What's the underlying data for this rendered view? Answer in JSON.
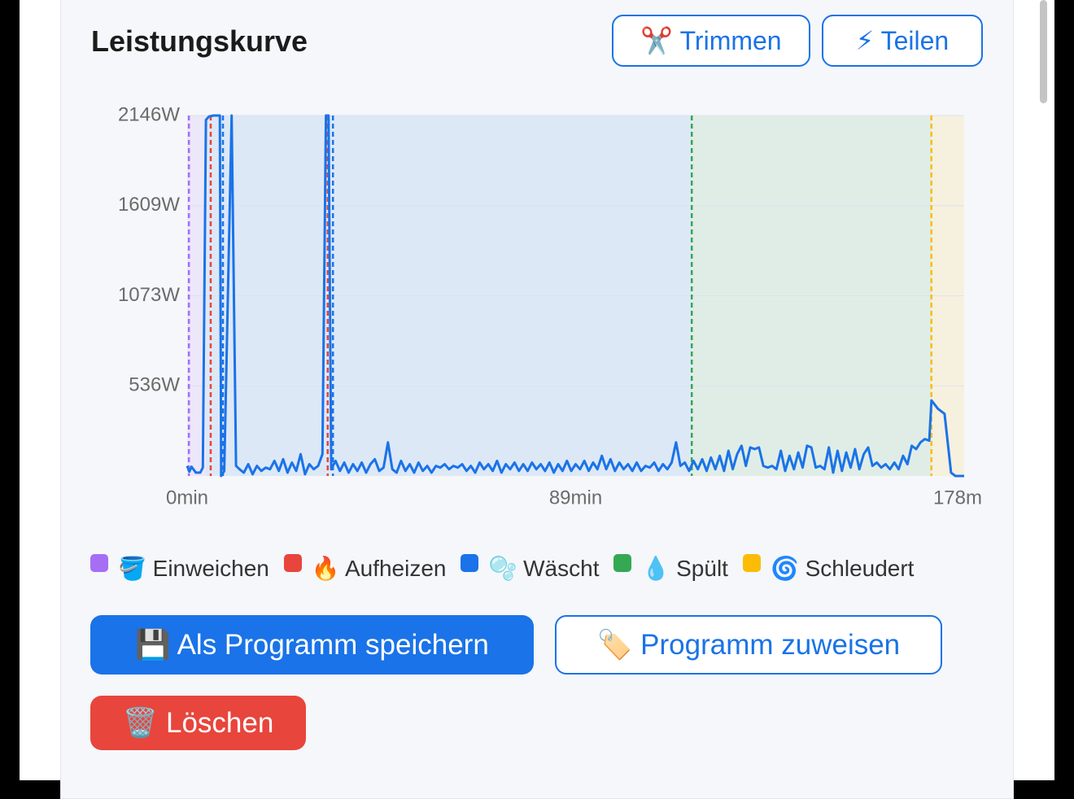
{
  "header": {
    "title": "Leistungskurve",
    "buttons": [
      "✂️ Trimmen",
      "⚡ Teilen"
    ]
  },
  "chart_data": {
    "type": "line",
    "xlim": [
      0,
      178
    ],
    "xticks": [
      {
        "value": 0,
        "label": "0min"
      },
      {
        "value": 89,
        "label": "89min"
      },
      {
        "value": 178,
        "label": "178m"
      }
    ],
    "ylim": [
      0,
      2146
    ],
    "yticks": [
      {
        "value": 536,
        "label": "536W"
      },
      {
        "value": 1073,
        "label": "1073W"
      },
      {
        "value": 1609,
        "label": "1609W"
      },
      {
        "value": 2146,
        "label": "2146W"
      }
    ],
    "grid": true,
    "x": [
      0,
      0.5,
      1,
      2,
      3,
      3.6,
      4.3,
      5,
      6,
      7.5,
      7.8,
      8.5,
      10.2,
      11.2,
      12,
      13,
      14,
      15,
      16,
      17,
      18,
      19,
      20,
      21,
      22,
      23,
      24,
      25,
      26,
      27,
      28,
      29,
      30,
      31,
      31.8,
      32.4,
      33,
      34,
      35,
      36,
      37,
      38,
      39,
      40,
      41,
      42,
      43,
      44,
      45,
      46,
      47,
      48,
      49,
      50,
      51,
      52,
      53,
      54,
      55,
      56,
      57,
      58,
      59,
      60,
      61,
      62,
      63,
      64,
      65,
      66,
      67,
      68,
      69,
      70,
      71,
      72,
      73,
      74,
      75,
      76,
      77,
      78,
      79,
      80,
      81,
      82,
      83,
      84,
      85,
      86,
      87,
      88,
      89,
      90,
      91,
      92,
      93,
      94,
      95,
      96,
      97,
      98,
      99,
      100,
      101,
      102,
      103,
      104,
      105,
      106,
      107,
      108,
      109,
      110,
      111,
      112,
      113,
      114,
      115,
      116,
      117,
      118,
      119,
      120,
      121,
      122,
      123,
      124,
      125,
      126,
      127,
      128,
      129,
      130,
      131,
      132,
      133,
      134,
      135,
      136,
      137,
      138,
      139,
      140,
      141,
      142,
      143,
      144,
      145,
      146,
      147,
      148,
      149,
      150,
      151,
      152,
      153,
      154,
      155,
      156,
      157,
      158,
      159,
      160,
      161,
      162,
      163,
      164,
      165,
      166,
      167,
      168,
      169,
      170,
      170.5,
      172,
      173.5,
      175,
      176,
      178
    ],
    "series": [
      {
        "color": "#1a73e8",
        "values": [
          60,
          25,
          55,
          20,
          20,
          50,
          2120,
          2140,
          2146,
          2146,
          0,
          30,
          2146,
          60,
          40,
          20,
          70,
          10,
          60,
          30,
          50,
          40,
          90,
          30,
          100,
          20,
          80,
          30,
          130,
          10,
          70,
          40,
          60,
          130,
          2146,
          2146,
          40,
          90,
          30,
          80,
          20,
          70,
          30,
          80,
          20,
          70,
          100,
          30,
          50,
          200,
          40,
          20,
          90,
          30,
          70,
          20,
          80,
          30,
          60,
          20,
          60,
          50,
          70,
          40,
          60,
          50,
          70,
          30,
          60,
          20,
          80,
          40,
          70,
          30,
          90,
          20,
          70,
          40,
          80,
          30,
          70,
          30,
          80,
          40,
          70,
          30,
          80,
          20,
          70,
          30,
          90,
          30,
          70,
          40,
          90,
          30,
          80,
          40,
          120,
          40,
          100,
          30,
          80,
          40,
          70,
          30,
          80,
          30,
          60,
          50,
          80,
          30,
          70,
          40,
          80,
          200,
          60,
          80,
          30,
          90,
          40,
          100,
          30,
          110,
          40,
          120,
          30,
          150,
          40,
          130,
          180,
          60,
          170,
          160,
          170,
          60,
          50,
          60,
          40,
          150,
          30,
          120,
          40,
          140,
          50,
          180,
          170,
          50,
          60,
          40,
          170,
          20,
          150,
          30,
          140,
          50,
          160,
          40,
          130,
          170,
          60,
          80,
          50,
          70,
          40,
          80,
          40,
          120,
          70,
          180,
          160,
          200,
          220,
          210,
          450,
          400,
          370,
          20,
          0,
          0
        ]
      }
    ],
    "regions": [
      {
        "start": 0,
        "end": 4.3,
        "color": "#a56ef5"
      },
      {
        "start": 4.3,
        "end": 115.6,
        "color": "#1a73e8"
      },
      {
        "start": 115.6,
        "end": 170.5,
        "color": "#34a853"
      },
      {
        "start": 170.5,
        "end": 178,
        "color": "#fbbc05"
      }
    ],
    "markers": [
      {
        "x": 0.4,
        "color": "#a56ef5"
      },
      {
        "x": 5.4,
        "color": "#e8453c"
      },
      {
        "x": 8.2,
        "color": "#1a73e8"
      },
      {
        "x": 32.2,
        "color": "#e8453c"
      },
      {
        "x": 33.4,
        "color": "#1a73e8"
      },
      {
        "x": 115.6,
        "color": "#34a853"
      },
      {
        "x": 170.5,
        "color": "#fbbc05"
      }
    ],
    "legend": [
      {
        "name": "🪣 Einweichen",
        "color": "#a56ef5"
      },
      {
        "name": "🔥 Aufheizen",
        "color": "#e8453c"
      },
      {
        "name": "🫧 Wäscht",
        "color": "#1a73e8"
      },
      {
        "name": "💧 Spült",
        "color": "#34a853"
      },
      {
        "name": "🌀 Schleudert",
        "color": "#fbbc05"
      }
    ]
  },
  "actions": [
    "💾 Als Programm speichern",
    "🏷️ Programm zuweisen",
    "🗑️ Löschen"
  ]
}
